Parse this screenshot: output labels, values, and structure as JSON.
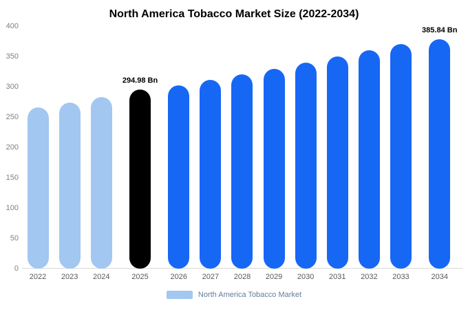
{
  "chart_data": {
    "type": "bar",
    "title": "North America Tobacco Market Size (2022-2034)",
    "legend": "North America Tobacco Market",
    "legend_position": "bottom",
    "categories": [
      "2022",
      "2023",
      "2024",
      "2025",
      "2026",
      "2027",
      "2028",
      "2029",
      "2030",
      "2031",
      "2032",
      "2033",
      "2034"
    ],
    "values": [
      266,
      274,
      283,
      294.98,
      302,
      311,
      320,
      330,
      340,
      350,
      360,
      371,
      385.84
    ],
    "unit": "Bn",
    "point_labels": [
      "",
      "",
      "",
      "294.98 Bn",
      "",
      "",
      "",
      "",
      "",
      "",
      "",
      "",
      "385.84 Bn"
    ],
    "bar_colors": [
      "#a2c7f0",
      "#a2c7f0",
      "#a2c7f0",
      "#000000",
      "#1767f5",
      "#1767f5",
      "#1767f5",
      "#1767f5",
      "#1767f5",
      "#1767f5",
      "#1767f5",
      "#1767f5",
      "#1767f5"
    ],
    "yticks": [
      0,
      50,
      100,
      150,
      200,
      250,
      300,
      350,
      400
    ],
    "ylim": [
      0,
      400
    ],
    "grid": false,
    "xlabel": "",
    "ylabel": "",
    "colors": {
      "historical_bars": "#a2c7f0",
      "highlight_bar": "#000000",
      "projection_bars": "#1767f5",
      "legend_swatch": "#a2c7f0",
      "legend_text": "#5f7d9c",
      "y_axis_text": "#7f7f7f",
      "x_axis_text": "#595959",
      "baseline": "#d9d9d9"
    }
  }
}
